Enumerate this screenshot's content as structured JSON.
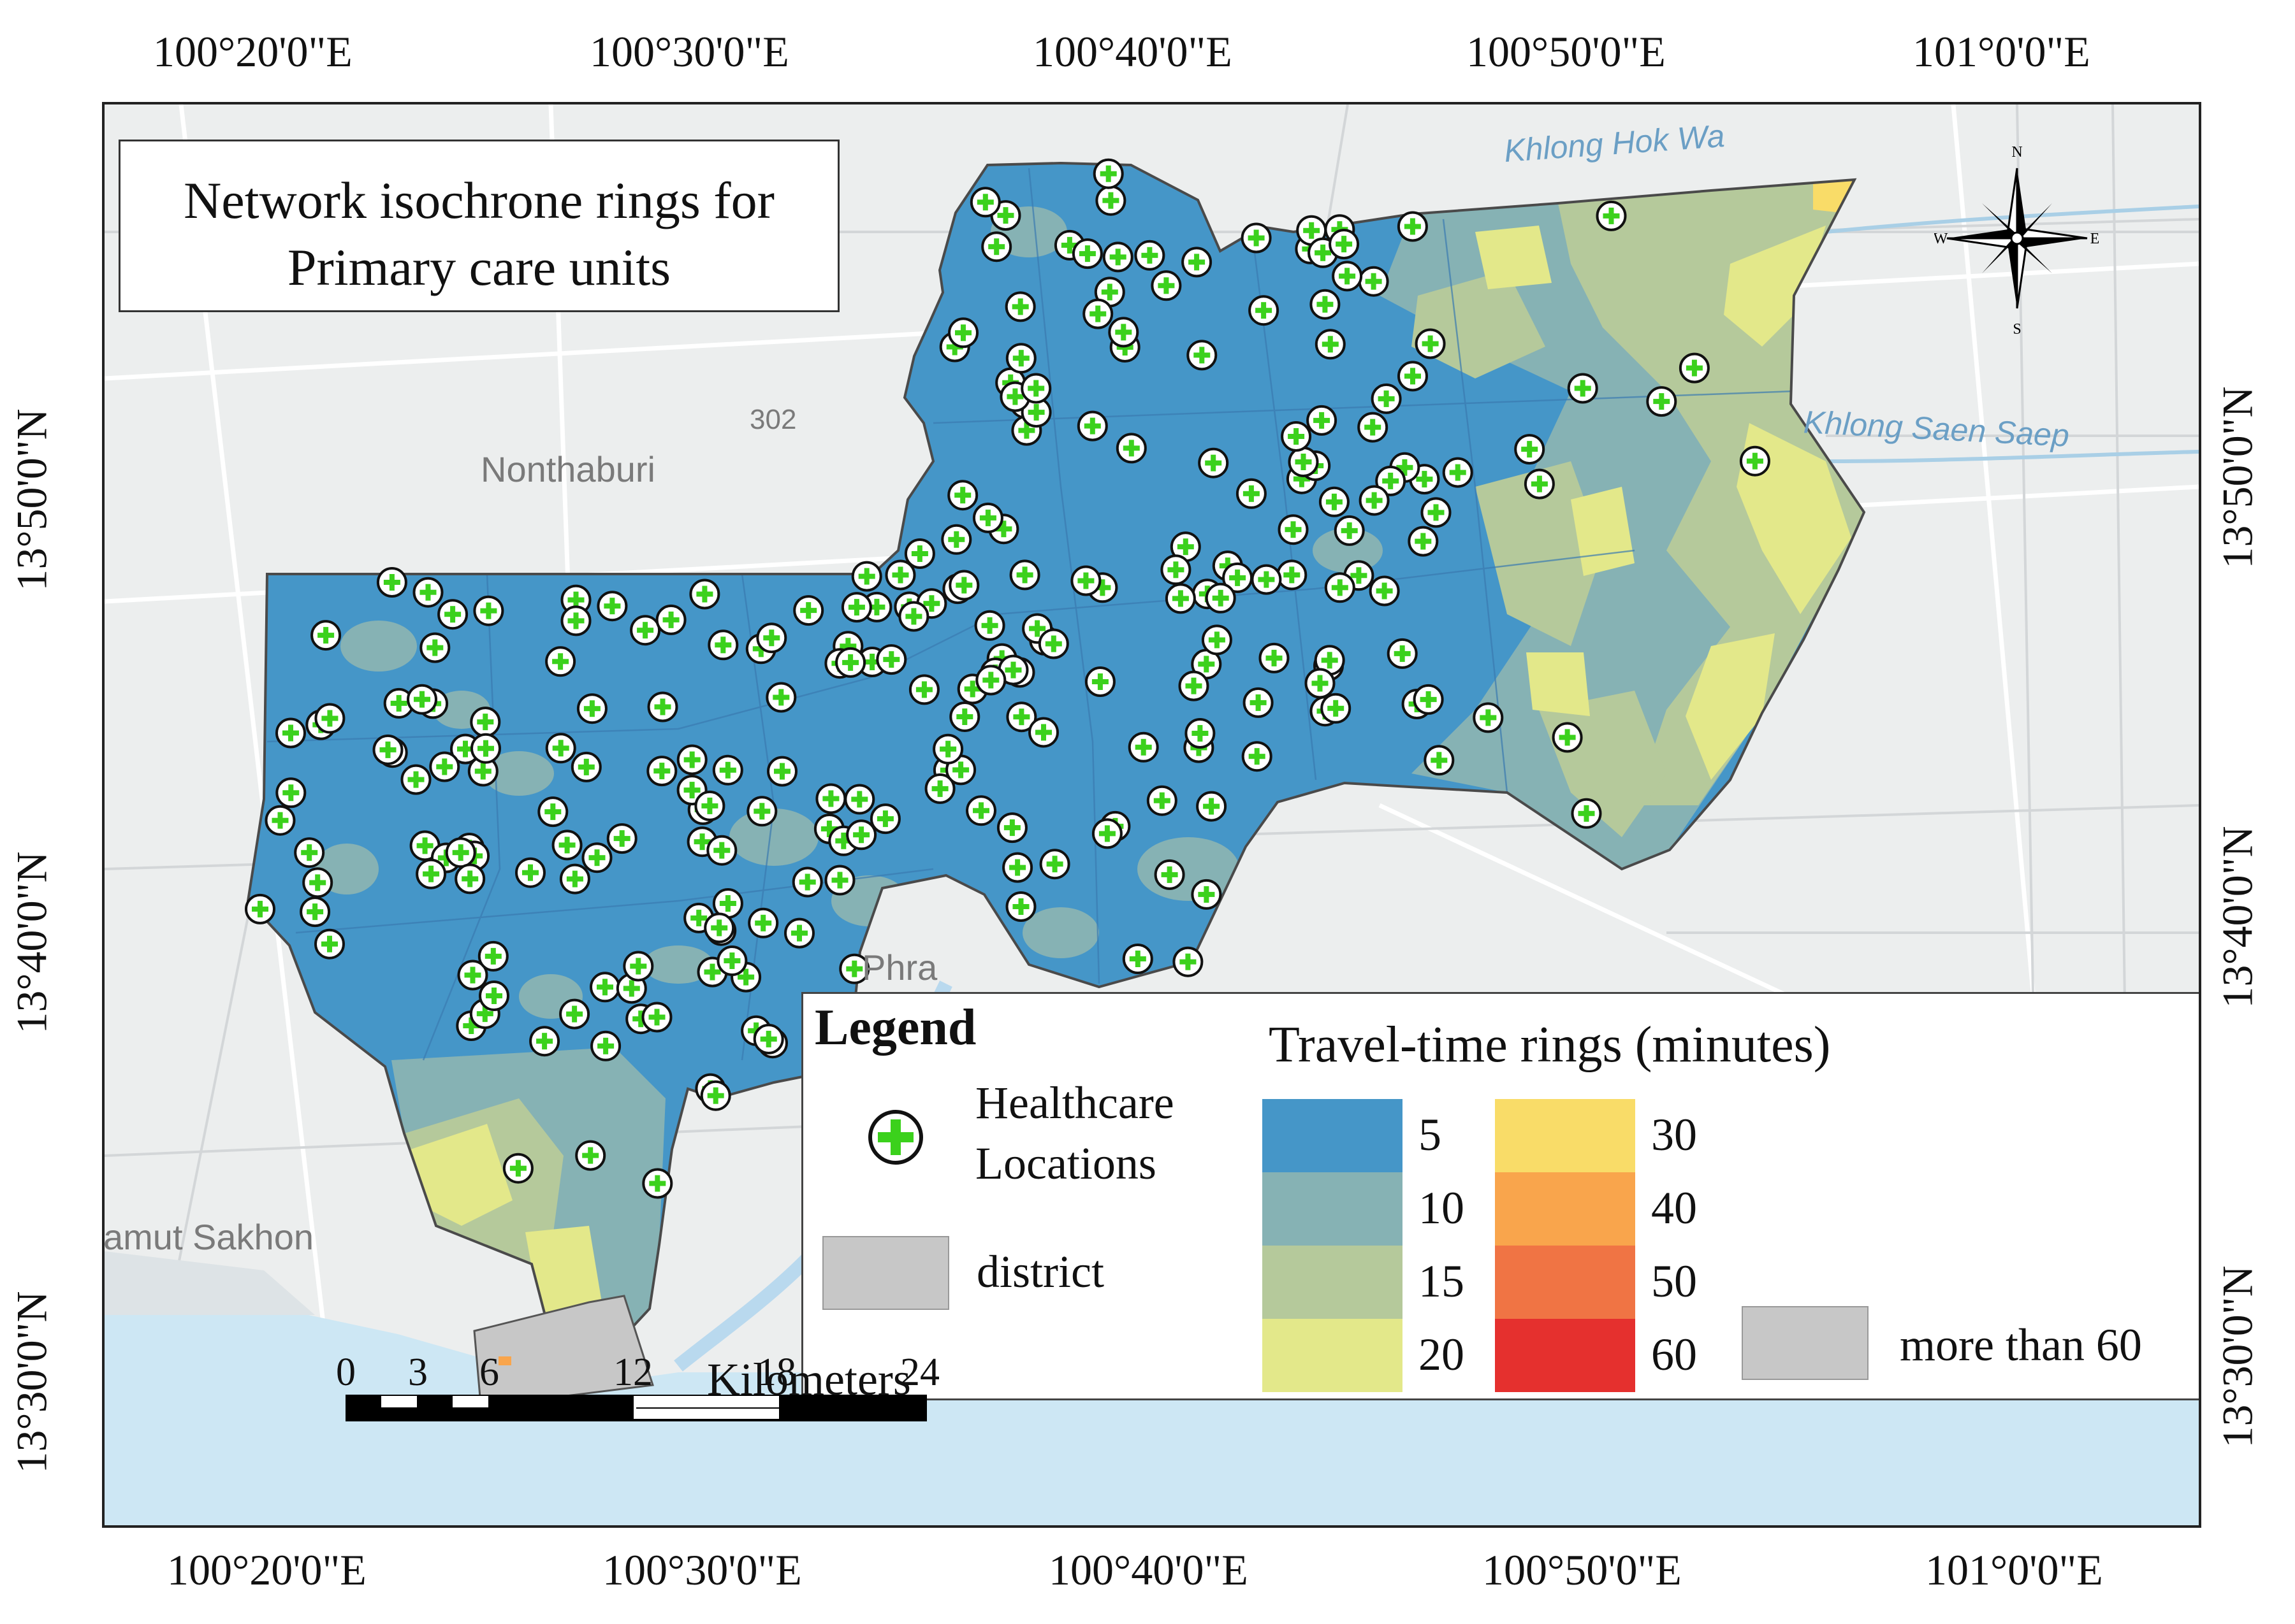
{
  "title": {
    "line1": "Network isochrone rings for",
    "line2": "Primary care units"
  },
  "longitude_ticks": [
    "100°20'0\"E",
    "100°30'0\"E",
    "100°40'0\"E",
    "100°50'0\"E",
    "101°0'0\"E"
  ],
  "latitude_ticks": [
    "13°50'0\"N",
    "13°40'0\"N",
    "13°30'0\"N"
  ],
  "place_labels": {
    "nonthaburi": "Nonthaburi",
    "phra": "Phra",
    "samut_sakhon": "amut Sakhon",
    "road_302": "302"
  },
  "water_labels": {
    "khlong_hok_wa": "Khlong Hok Wa",
    "khlong_saen_saep": "Khlong Saen Saep"
  },
  "north_arrow": {
    "n": "N",
    "s": "S",
    "e": "E",
    "w": "W"
  },
  "legend": {
    "title": "Legend",
    "healthcare_line1": "Healthcare",
    "healthcare_line2": "Locations",
    "district": "district",
    "rings_title": "Travel-time rings (minutes)",
    "rings": [
      {
        "label": "5",
        "color": "#4596c8"
      },
      {
        "label": "10",
        "color": "#86b2b4"
      },
      {
        "label": "15",
        "color": "#b5c99b"
      },
      {
        "label": "20",
        "color": "#e3e88a"
      },
      {
        "label": "30",
        "color": "#f9dc68"
      },
      {
        "label": "40",
        "color": "#f9a54c"
      },
      {
        "label": "50",
        "color": "#f07444"
      },
      {
        "label": "60",
        "color": "#e5302e"
      }
    ],
    "more_than_60": "more than 60",
    "more_than_60_color": "#c7c7c7"
  },
  "scale_bar": {
    "labels": [
      "0",
      "3",
      "6",
      "12",
      "18",
      "24"
    ],
    "unit": "Kilometers"
  },
  "icons": {
    "healthcare": "green-cross-circle-icon",
    "north_arrow": "compass-rose-icon"
  }
}
